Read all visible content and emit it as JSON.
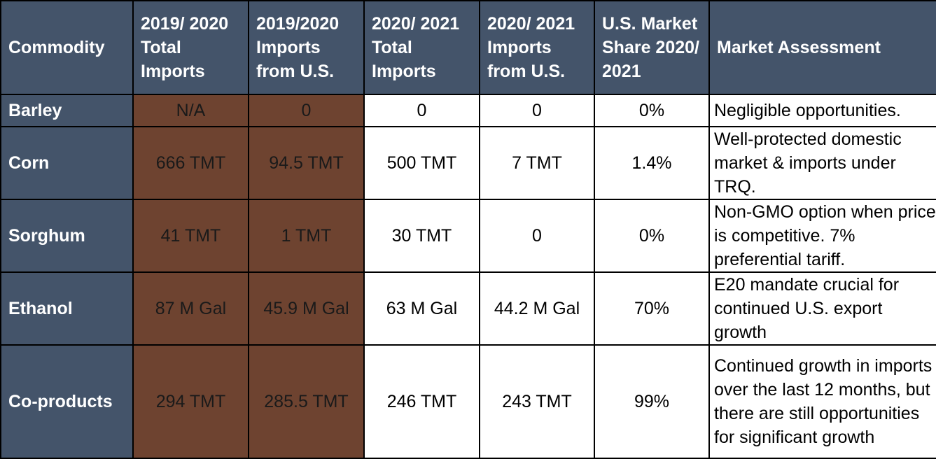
{
  "headers": [
    "Commodity",
    "2019/ 2020 Total Imports",
    "2019/2020 Imports from U.S.",
    "2020/ 2021 Total Imports",
    "2020/ 2021 Imports from U.S.",
    "U.S. Market Share 2020/ 2021",
    "Market Assessment"
  ],
  "rows": [
    {
      "commodity": "Barley",
      "total_1920": "N/A",
      "us_1920": "0",
      "total_2021": "0",
      "us_2021": "0",
      "share": "0%",
      "assessment": "Negligible opportunities."
    },
    {
      "commodity": "Corn",
      "total_1920": "666 TMT",
      "us_1920": "94.5 TMT",
      "total_2021": "500 TMT",
      "us_2021": "7 TMT",
      "share": "1.4%",
      "assessment": "Well-protected domestic market & imports under TRQ."
    },
    {
      "commodity": "Sorghum",
      "total_1920": "41 TMT",
      "us_1920": "1 TMT",
      "total_2021": "30 TMT",
      "us_2021": "0",
      "share": "0%",
      "assessment": "Non-GMO option when price is competitive. 7% preferential tariff."
    },
    {
      "commodity": "Ethanol",
      "total_1920": "87 M Gal",
      "us_1920": "45.9 M Gal",
      "total_2021": "63 M Gal",
      "us_2021": "44.2 M Gal",
      "share": "70%",
      "assessment": "E20 mandate crucial for continued U.S. export growth"
    },
    {
      "commodity": "Co-products",
      "total_1920": "294 TMT",
      "us_1920": "285.5 TMT",
      "total_2021": "246 TMT",
      "us_2021": "243 TMT",
      "share": "99%",
      "assessment": "Continued growth in imports over the last 12 months, but there are still opportunities for significant growth"
    }
  ],
  "colors": {
    "header_bg": "#44546a",
    "brown_bg": "#6e4330",
    "border": "#000000"
  }
}
